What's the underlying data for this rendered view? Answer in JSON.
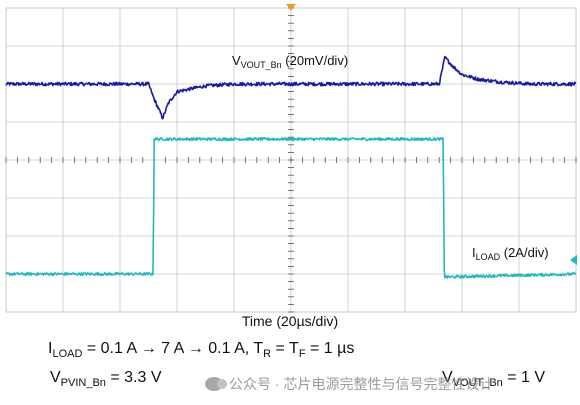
{
  "chart_data": {
    "type": "line",
    "title": "",
    "xlabel": "Time (20µs/div)",
    "ylabel": "",
    "x_divisions": 10,
    "y_divisions": 8,
    "grid": true,
    "series": [
      {
        "name": "V_VOUT_Bn (20mV/div)",
        "label_main": "V",
        "label_sub": "VOUT_Bn",
        "label_rest": " (20mV/div)",
        "color": "#1a1a9e",
        "baseline_div": 6.0,
        "x_div": [
          0,
          2.5,
          2.6,
          2.75,
          2.85,
          3.0,
          3.5,
          4.0,
          5.0,
          7.0,
          7.6,
          7.7,
          7.85,
          8.0,
          8.3,
          8.7,
          9.2,
          10.0
        ],
        "y_div": [
          6.0,
          6.0,
          5.6,
          5.1,
          5.5,
          5.8,
          5.95,
          6.0,
          6.0,
          6.0,
          6.0,
          6.7,
          6.45,
          6.25,
          6.12,
          6.05,
          6.0,
          6.0
        ]
      },
      {
        "name": "I_LOAD (2A/div)",
        "label_main": "I",
        "label_sub": "LOAD",
        "label_rest": " (2A/div)",
        "color": "#20b8c0",
        "x_div": [
          0,
          2.58,
          2.6,
          7.67,
          7.69,
          10.0
        ],
        "y_div": [
          1.0,
          1.0,
          4.55,
          4.55,
          0.92,
          1.0
        ]
      }
    ]
  },
  "caption": {
    "line1": {
      "i": "I",
      "i_sub": "LOAD",
      "mid": " = 0.1 A → 7 A → 0.1 A, T",
      "tr_sub": "R",
      "eq": " = T",
      "tf_sub": "F",
      "end": " = 1  µs"
    },
    "line2": {
      "vp": "V",
      "vp_sub": "PVIN_Bn",
      "vp_val": " = 3.3 V",
      "vo": "V",
      "vo_sub": "VOUT_Bn",
      "vo_val": " = 1 V"
    }
  },
  "watermark": "公众号 · 芯片电源完整性与信号完整性设计"
}
